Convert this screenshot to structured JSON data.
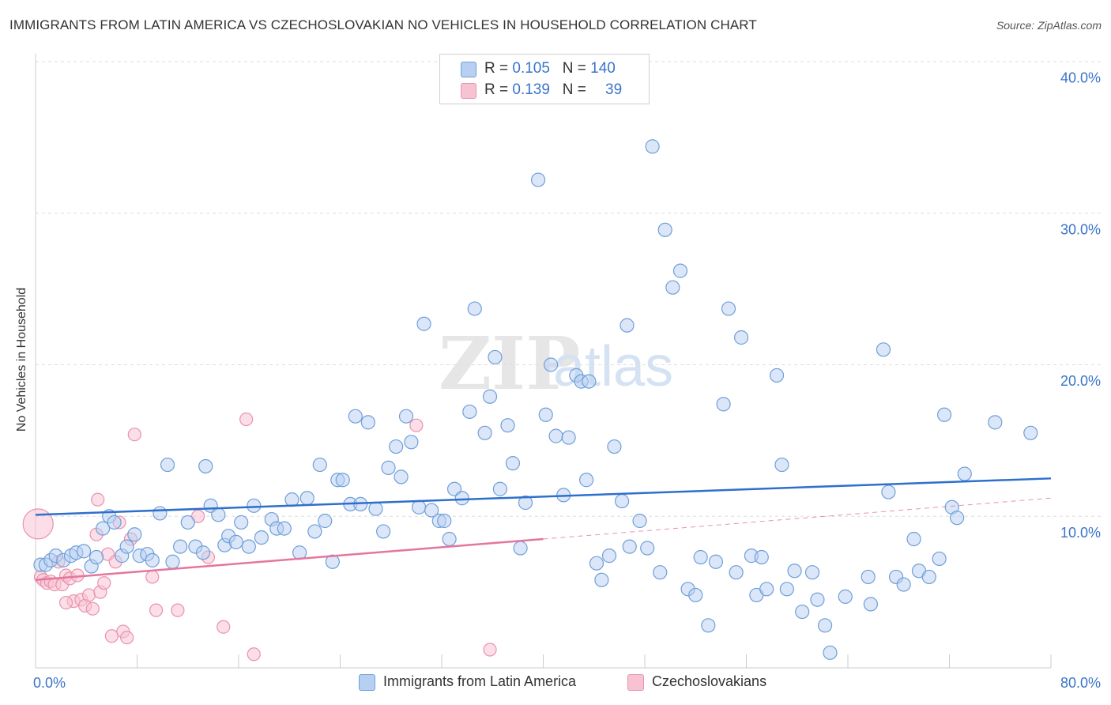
{
  "header": {
    "title": "IMMIGRANTS FROM LATIN AMERICA VS CZECHOSLOVAKIAN NO VEHICLES IN HOUSEHOLD CORRELATION CHART",
    "source": "Source: ZipAtlas.com"
  },
  "watermark": {
    "zip": "ZIP",
    "atlas": "atlas"
  },
  "legend": {
    "rows": [
      {
        "r_label": "R = ",
        "r_value": "0.105",
        "n_label": "N = ",
        "n_value": "140"
      },
      {
        "r_label": "R = ",
        "r_value": "0.139",
        "n_label": "N = ",
        "n_value": "39"
      }
    ]
  },
  "bottom_legend": {
    "items": [
      {
        "label": "Immigrants from Latin America"
      },
      {
        "label": "Czechoslovakians"
      }
    ]
  },
  "colors": {
    "blue_fill": "#b7d0f2",
    "blue_stroke": "#6f9fd8",
    "blue_line": "#2f6fcc",
    "pink_fill": "#f7c3d3",
    "pink_stroke": "#e993ae",
    "pink_line": "#e4769c",
    "grid": "#dddddd",
    "tick_text": "#3a74c9"
  },
  "chart_data": {
    "type": "scatter",
    "title": "IMMIGRANTS FROM LATIN AMERICA VS CZECHOSLOVAKIAN NO VEHICLES IN HOUSEHOLD CORRELATION CHART",
    "xlabel": "",
    "ylabel": "No Vehicles in Household",
    "xlim": [
      0,
      80
    ],
    "ylim": [
      0,
      40
    ],
    "x_tick_labels": [
      "0.0%",
      "80.0%"
    ],
    "y_ticks": [
      10,
      20,
      30,
      40
    ],
    "y_tick_labels": [
      "10.0%",
      "20.0%",
      "30.0%",
      "40.0%"
    ],
    "grid": true,
    "series": [
      {
        "name": "Immigrants from Latin America",
        "color": "#b7d0f2",
        "R": 0.105,
        "N": 140,
        "trend": {
          "x": [
            0,
            80
          ],
          "y": [
            10.1,
            12.5
          ]
        },
        "points": [
          [
            0.4,
            6.8
          ],
          [
            0.8,
            6.8
          ],
          [
            1.2,
            7.1
          ],
          [
            1.6,
            7.4
          ],
          [
            2.2,
            7.1
          ],
          [
            2.8,
            7.4
          ],
          [
            3.2,
            7.6
          ],
          [
            3.8,
            7.7
          ],
          [
            4.4,
            6.7
          ],
          [
            4.8,
            7.3
          ],
          [
            5.3,
            9.2
          ],
          [
            5.8,
            10.0
          ],
          [
            6.2,
            9.6
          ],
          [
            6.8,
            7.4
          ],
          [
            7.2,
            8.0
          ],
          [
            7.8,
            8.8
          ],
          [
            8.2,
            7.4
          ],
          [
            8.8,
            7.5
          ],
          [
            9.2,
            7.1
          ],
          [
            9.8,
            10.2
          ],
          [
            10.4,
            13.4
          ],
          [
            10.8,
            7.0
          ],
          [
            11.4,
            8.0
          ],
          [
            12.0,
            9.6
          ],
          [
            12.6,
            8.0
          ],
          [
            13.2,
            7.6
          ],
          [
            13.4,
            13.3
          ],
          [
            13.8,
            10.7
          ],
          [
            14.4,
            10.1
          ],
          [
            14.9,
            8.1
          ],
          [
            15.2,
            8.7
          ],
          [
            15.8,
            8.3
          ],
          [
            16.2,
            9.6
          ],
          [
            16.8,
            8.0
          ],
          [
            17.2,
            10.7
          ],
          [
            17.8,
            8.6
          ],
          [
            18.6,
            9.8
          ],
          [
            19.0,
            9.2
          ],
          [
            19.6,
            9.2
          ],
          [
            20.2,
            11.1
          ],
          [
            20.8,
            7.6
          ],
          [
            21.4,
            11.2
          ],
          [
            22.0,
            9.0
          ],
          [
            22.4,
            13.4
          ],
          [
            22.8,
            9.7
          ],
          [
            23.4,
            7.0
          ],
          [
            23.8,
            12.4
          ],
          [
            24.2,
            12.4
          ],
          [
            24.8,
            10.8
          ],
          [
            25.2,
            16.6
          ],
          [
            25.6,
            10.8
          ],
          [
            26.2,
            16.2
          ],
          [
            26.8,
            10.5
          ],
          [
            27.4,
            9.0
          ],
          [
            27.8,
            13.2
          ],
          [
            28.4,
            14.6
          ],
          [
            28.8,
            12.6
          ],
          [
            29.2,
            16.6
          ],
          [
            29.6,
            14.9
          ],
          [
            30.2,
            10.6
          ],
          [
            30.6,
            22.7
          ],
          [
            31.2,
            10.4
          ],
          [
            31.8,
            9.7
          ],
          [
            32.2,
            9.7
          ],
          [
            32.6,
            8.5
          ],
          [
            33.0,
            11.8
          ],
          [
            33.6,
            11.2
          ],
          [
            34.2,
            16.9
          ],
          [
            34.6,
            23.7
          ],
          [
            35.4,
            15.5
          ],
          [
            35.8,
            17.9
          ],
          [
            36.2,
            20.5
          ],
          [
            36.6,
            11.8
          ],
          [
            37.2,
            16.0
          ],
          [
            37.6,
            13.5
          ],
          [
            38.2,
            7.9
          ],
          [
            38.6,
            10.9
          ],
          [
            39.6,
            32.2
          ],
          [
            40.2,
            16.7
          ],
          [
            40.6,
            20.0
          ],
          [
            41.0,
            15.3
          ],
          [
            41.6,
            11.4
          ],
          [
            42.0,
            15.2
          ],
          [
            42.6,
            19.3
          ],
          [
            43.0,
            18.9
          ],
          [
            43.4,
            12.4
          ],
          [
            43.6,
            18.9
          ],
          [
            44.2,
            6.9
          ],
          [
            44.6,
            5.8
          ],
          [
            45.2,
            7.4
          ],
          [
            45.6,
            14.6
          ],
          [
            46.2,
            11.0
          ],
          [
            46.6,
            22.6
          ],
          [
            46.8,
            8.0
          ],
          [
            47.6,
            9.7
          ],
          [
            48.2,
            7.9
          ],
          [
            48.6,
            34.4
          ],
          [
            49.2,
            6.3
          ],
          [
            49.6,
            28.9
          ],
          [
            50.2,
            25.1
          ],
          [
            50.8,
            26.2
          ],
          [
            51.4,
            5.2
          ],
          [
            52.0,
            4.8
          ],
          [
            52.4,
            7.3
          ],
          [
            53.0,
            2.8
          ],
          [
            53.6,
            7.0
          ],
          [
            54.2,
            17.4
          ],
          [
            54.6,
            23.7
          ],
          [
            55.2,
            6.3
          ],
          [
            55.6,
            21.8
          ],
          [
            56.4,
            7.4
          ],
          [
            56.8,
            4.8
          ],
          [
            57.2,
            7.3
          ],
          [
            57.6,
            5.2
          ],
          [
            58.4,
            19.3
          ],
          [
            58.8,
            13.4
          ],
          [
            59.2,
            5.2
          ],
          [
            59.8,
            6.4
          ],
          [
            60.4,
            3.7
          ],
          [
            61.2,
            6.3
          ],
          [
            61.6,
            4.5
          ],
          [
            62.2,
            2.8
          ],
          [
            62.6,
            1.0
          ],
          [
            63.8,
            4.7
          ],
          [
            65.6,
            6.0
          ],
          [
            65.8,
            4.2
          ],
          [
            66.8,
            21.0
          ],
          [
            67.2,
            11.6
          ],
          [
            67.8,
            6.0
          ],
          [
            68.4,
            5.5
          ],
          [
            69.2,
            8.5
          ],
          [
            69.6,
            6.4
          ],
          [
            70.4,
            6.0
          ],
          [
            71.2,
            7.2
          ],
          [
            71.6,
            16.7
          ],
          [
            72.2,
            10.6
          ],
          [
            72.6,
            9.9
          ],
          [
            73.2,
            12.8
          ],
          [
            75.6,
            16.2
          ],
          [
            78.4,
            15.5
          ]
        ]
      },
      {
        "name": "Czechoslovakians",
        "color": "#f7c3d3",
        "R": 0.139,
        "N": 39,
        "trend": {
          "x": [
            0,
            40
          ],
          "y": [
            5.8,
            8.5
          ],
          "dashed_extension": {
            "x": [
              40,
              80
            ],
            "y": [
              8.5,
              11.2
            ]
          }
        },
        "points": [
          [
            0.2,
            9.5
          ],
          [
            0.4,
            6.0
          ],
          [
            0.6,
            5.8
          ],
          [
            0.9,
            5.6
          ],
          [
            1.2,
            5.7
          ],
          [
            1.5,
            5.5
          ],
          [
            1.8,
            7.0
          ],
          [
            2.1,
            5.5
          ],
          [
            2.4,
            6.1
          ],
          [
            2.7,
            5.9
          ],
          [
            3.0,
            4.4
          ],
          [
            3.3,
            6.1
          ],
          [
            3.6,
            4.5
          ],
          [
            3.9,
            4.1
          ],
          [
            4.2,
            4.8
          ],
          [
            4.5,
            3.9
          ],
          [
            4.8,
            8.8
          ],
          [
            5.1,
            5.0
          ],
          [
            5.4,
            5.6
          ],
          [
            5.7,
            7.5
          ],
          [
            6.0,
            2.1
          ],
          [
            6.3,
            7.0
          ],
          [
            6.6,
            9.6
          ],
          [
            6.9,
            2.4
          ],
          [
            7.2,
            2.0
          ],
          [
            7.5,
            8.5
          ],
          [
            7.8,
            15.4
          ],
          [
            2.4,
            4.3
          ],
          [
            4.9,
            11.1
          ],
          [
            9.2,
            6.0
          ],
          [
            9.5,
            3.8
          ],
          [
            11.2,
            3.8
          ],
          [
            12.8,
            10.0
          ],
          [
            13.6,
            7.3
          ],
          [
            14.8,
            2.7
          ],
          [
            16.6,
            16.4
          ],
          [
            17.2,
            0.9
          ],
          [
            30.0,
            16.0
          ],
          [
            35.8,
            1.2
          ]
        ]
      }
    ]
  }
}
